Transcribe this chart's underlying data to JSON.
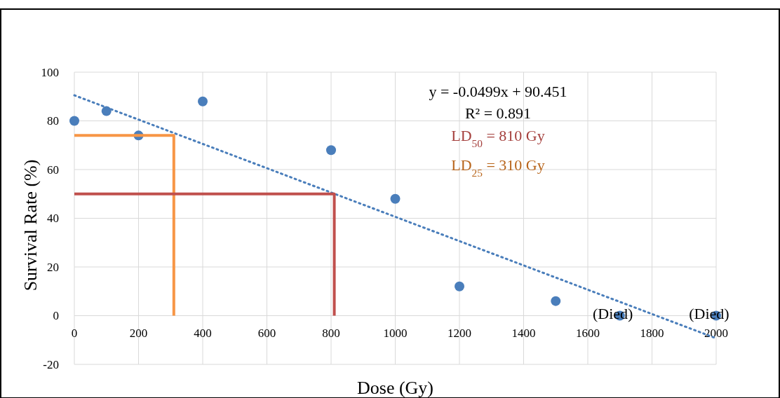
{
  "chart_data": {
    "type": "scatter",
    "xlabel": "Dose (Gy)",
    "ylabel": "Survival Rate  (%)",
    "xlim": [
      0,
      2000
    ],
    "ylim": [
      -20,
      100
    ],
    "xticks": [
      0,
      200,
      400,
      600,
      800,
      1000,
      1200,
      1400,
      1600,
      1800,
      2000
    ],
    "yticks": [
      -20,
      0,
      20,
      40,
      60,
      80,
      100
    ],
    "grid": true,
    "marker": "circle",
    "x": [
      0,
      100,
      200,
      400,
      800,
      1000,
      1200,
      1500,
      1700,
      2000
    ],
    "series": [
      {
        "color": "#4a7ebb",
        "values": [
          80,
          84,
          74,
          88,
          68,
          48,
          12,
          6,
          0,
          0
        ]
      },
      {
        "type": "line",
        "color": "#4a7ebb",
        "line_style": "dotted",
        "marker": "none",
        "x": [
          0,
          2000
        ],
        "values": [
          90.5,
          -9.3
        ]
      },
      {
        "type": "line",
        "color": "#f79646",
        "line_style": "solid",
        "marker": "none",
        "x": [
          0,
          310,
          310
        ],
        "values": [
          74,
          74,
          0
        ]
      },
      {
        "type": "line",
        "color": "#c0504d",
        "line_style": "solid",
        "marker": "none",
        "x": [
          0,
          810,
          810
        ],
        "values": [
          50,
          50,
          0
        ]
      }
    ],
    "annotations": [
      "y = -0.0499x + 90.451",
      "R² = 0.891",
      "LD$_{50}$ = 810 Gy",
      "LD$_{25}$ = 310 Gy",
      {
        "text": "(Died)",
        "x": 1700,
        "y": 0
      },
      {
        "text": "(Died)",
        "x": 2000,
        "y": 0
      }
    ]
  }
}
